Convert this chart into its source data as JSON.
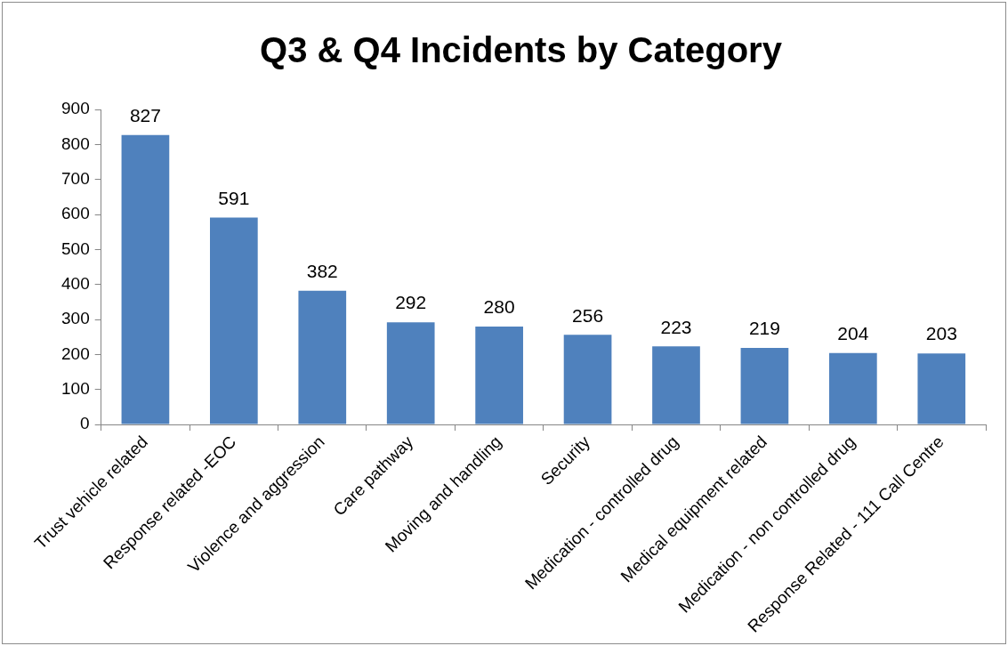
{
  "chart_data": {
    "type": "bar",
    "title": "Q3 & Q4 Incidents by Category",
    "categories": [
      "Trust vehicle related",
      "Response related -EOC",
      "Violence and aggression",
      "Care pathway",
      "Moving and handling",
      "Security",
      "Medication - controlled drug",
      "Medical equipment related",
      "Medication - non controlled drug",
      "Response Related - 111 Call Centre"
    ],
    "values": [
      827,
      591,
      382,
      292,
      280,
      256,
      223,
      219,
      204,
      203
    ],
    "color": "#4f81bd",
    "ylim": [
      0,
      900
    ],
    "yticks": [
      0,
      100,
      200,
      300,
      400,
      500,
      600,
      700,
      800,
      900
    ],
    "grid": false,
    "legend": false,
    "data_labels": true
  }
}
